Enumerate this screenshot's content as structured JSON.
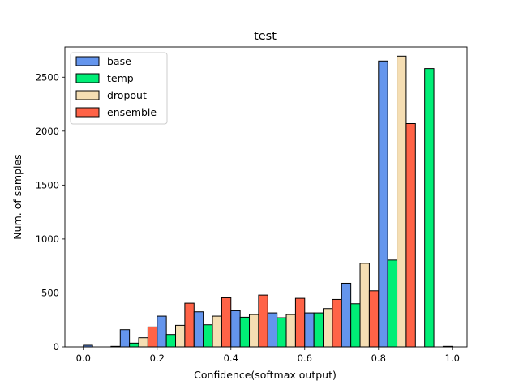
{
  "chart_data": {
    "type": "bar",
    "title": "test",
    "xlabel": "Confidence(softmax output)",
    "ylabel": "Num. of samples",
    "xlim": [
      -0.05,
      1.04
    ],
    "ylim": [
      0,
      2780
    ],
    "xticks": [
      0.0,
      0.2,
      0.4,
      0.6,
      0.8,
      1.0
    ],
    "xtick_labels": [
      "0.0",
      "0.2",
      "0.4",
      "0.6",
      "0.8",
      "1.0"
    ],
    "yticks": [
      0,
      500,
      1000,
      1500,
      2000,
      2500
    ],
    "ytick_labels": [
      "0",
      "500",
      "1000",
      "1500",
      "2000",
      "2500"
    ],
    "bin_edges": [
      0.0,
      0.1,
      0.2,
      0.3,
      0.4,
      0.5,
      0.6,
      0.7,
      0.8,
      0.9,
      1.0
    ],
    "grid": false,
    "legend_position": "upper left",
    "series": [
      {
        "name": "base",
        "color": "#6495ED",
        "values": [
          15,
          160,
          285,
          325,
          335,
          315,
          315,
          590,
          2650,
          0
        ]
      },
      {
        "name": "temp",
        "color": "#00EE76",
        "values": [
          0,
          35,
          115,
          205,
          275,
          270,
          315,
          400,
          805,
          2580
        ]
      },
      {
        "name": "dropout",
        "color": "#F5DEB3",
        "values": [
          0,
          85,
          200,
          285,
          300,
          300,
          355,
          775,
          2695,
          0
        ]
      },
      {
        "name": "ensemble",
        "color": "#FF6347",
        "values": [
          5,
          185,
          405,
          455,
          480,
          450,
          440,
          520,
          2070,
          5
        ]
      }
    ]
  }
}
